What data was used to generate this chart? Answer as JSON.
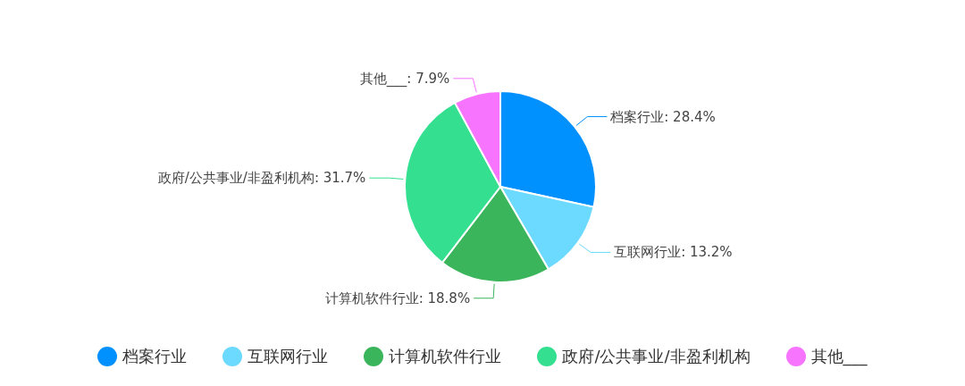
{
  "chart_data": {
    "type": "pie",
    "categories": [
      "档案行业",
      "互联网行业",
      "计算机软件行业",
      "政府/公共事业/非盈利机构",
      "其他___"
    ],
    "values": [
      28.4,
      13.2,
      18.8,
      31.7,
      7.9
    ],
    "colors": [
      "#0091ff",
      "#6cd9ff",
      "#3bb55b",
      "#35df90",
      "#f774ff"
    ],
    "value_labels": [
      "档案行业: 28.4%",
      "互联网行业: 13.2%",
      "计算机软件行业: 18.8%",
      "政府/公共事业/非盈利机构: 31.7%",
      "其他___: 7.9%"
    ],
    "legend": "bottom"
  }
}
